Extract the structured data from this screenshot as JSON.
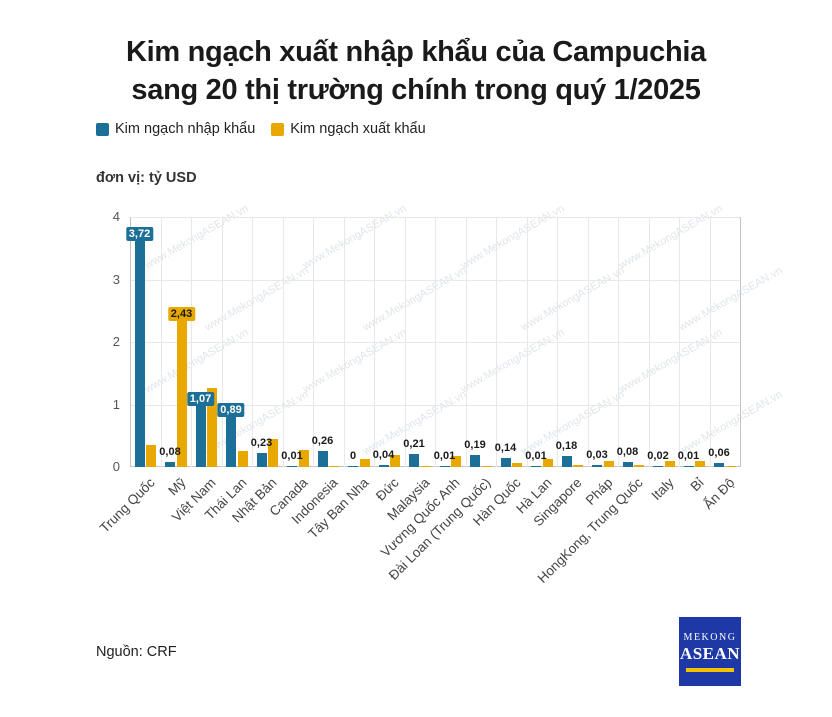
{
  "title": {
    "line1": "Kim ngạch xuất nhập khẩu của Campuchia",
    "line2": "sang 20 thị trường chính trong quý 1/2025"
  },
  "legend": {
    "items": [
      {
        "label": "Kim ngạch nhập khẩu",
        "color": "#1C6F97"
      },
      {
        "label": "Kim ngạch xuất khẩu",
        "color": "#E9A800"
      }
    ]
  },
  "unit_label": "đơn vị: tỷ USD",
  "source": "Nguồn: CRF",
  "watermark": "www.MekongASEAN.vn",
  "logo": {
    "line1": "Mekong",
    "line2": "ASEAN",
    "bg_color": "#1E39A5",
    "accent_color": "#F2C200"
  },
  "chart_data": {
    "type": "bar",
    "title": "Kim ngạch xuất nhập khẩu của Campuchia sang 20 thị trường chính trong quý 1/2025",
    "xlabel": "",
    "ylabel": "tỷ USD",
    "ylim": [
      0,
      4
    ],
    "yticks": [
      0,
      1,
      2,
      3,
      4
    ],
    "grid": true,
    "legend_position": "top-left",
    "categories": [
      "Trung Quốc",
      "Mỹ",
      "Việt Nam",
      "Thái Lan",
      "Nhật Bản",
      "Canada",
      "Indonesia",
      "Tây Ban Nha",
      "Đức",
      "Malaysia",
      "Vương Quốc Anh",
      "Đài Loan (Trung Quốc)",
      "Hàn Quốc",
      "Hà Lan",
      "Singapore",
      "Pháp",
      "HongKong, Trung Quốc",
      "Italy",
      "Bỉ",
      "Ấn Độ"
    ],
    "series": [
      {
        "name": "Kim ngạch nhập khẩu",
        "color": "#1C6F97",
        "values": [
          3.72,
          0.08,
          1.07,
          0.89,
          0.23,
          0.01,
          0.26,
          0,
          0.04,
          0.21,
          0.01,
          0.19,
          0.14,
          0.01,
          0.18,
          0.03,
          0.08,
          0.02,
          0.01,
          0.06
        ],
        "labels": [
          "3,72",
          "0,08",
          "1,07",
          "0,89",
          "0,23",
          "0,01",
          "0,26",
          "0",
          "0,04",
          "0,21",
          "0,01",
          "0,19",
          "0,14",
          "0,01",
          "0,18",
          "0,03",
          "0,08",
          "0,02",
          "0,01",
          "0,06"
        ]
      },
      {
        "name": "Kim ngạch xuất khẩu",
        "color": "#E9A800",
        "values": [
          0.35,
          2.43,
          1.27,
          0.26,
          0.45,
          0.28,
          0.02,
          0.13,
          0.2,
          0.02,
          0.18,
          0.01,
          0.07,
          0.13,
          0.03,
          0.09,
          0.03,
          0.09,
          0.09,
          0.02
        ],
        "labels": [
          null,
          "2,43",
          null,
          null,
          null,
          null,
          null,
          null,
          null,
          null,
          null,
          null,
          null,
          null,
          null,
          null,
          null,
          null,
          null,
          null
        ]
      }
    ]
  }
}
